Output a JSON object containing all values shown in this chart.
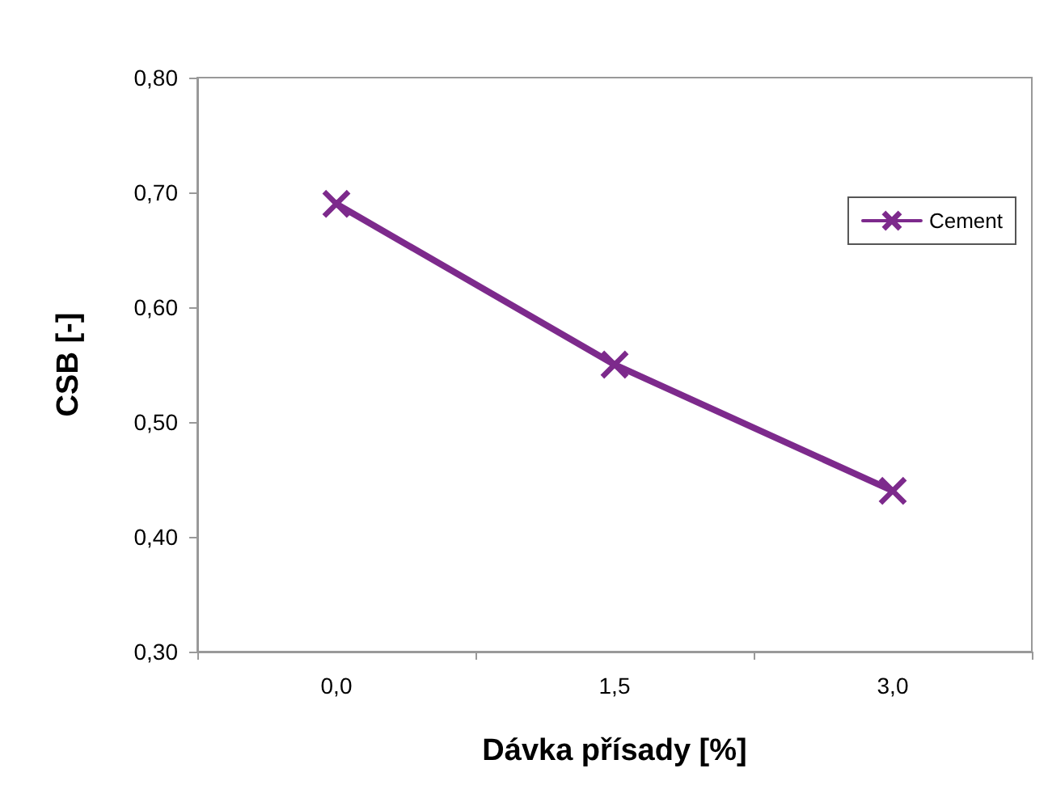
{
  "chart_data": {
    "type": "line",
    "xlabel": "Dávka přísady [%]",
    "ylabel": "CSB [-]",
    "categories": [
      "0,0",
      "1,5",
      "3,0"
    ],
    "series": [
      {
        "name": "Cement",
        "color": "#7d2a8c",
        "values": [
          0.69,
          0.55,
          0.44
        ]
      }
    ],
    "ylim": [
      0.3,
      0.8
    ],
    "yticks": [
      {
        "value": 0.3,
        "label": "0,30"
      },
      {
        "value": 0.4,
        "label": "0,40"
      },
      {
        "value": 0.5,
        "label": "0,50"
      },
      {
        "value": 0.6,
        "label": "0,60"
      },
      {
        "value": 0.7,
        "label": "0,70"
      },
      {
        "value": 0.8,
        "label": "0,80"
      }
    ],
    "grid": false,
    "legend": "right",
    "marker": "cross",
    "line_style": "solid"
  }
}
